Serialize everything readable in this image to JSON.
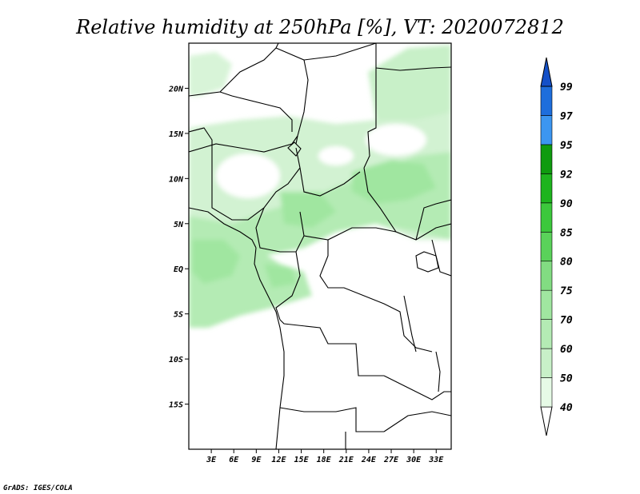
{
  "title": "Relative humidity at 250hPa [%], VT: 2020072812",
  "credit": "GrADS: IGES/COLA",
  "map": {
    "lat_range": [
      -20,
      25
    ],
    "lon_range": [
      0,
      35
    ],
    "lat_ticks": [
      {
        "value": 20,
        "label": "20N"
      },
      {
        "value": 15,
        "label": "15N"
      },
      {
        "value": 10,
        "label": "10N"
      },
      {
        "value": 5,
        "label": "5N"
      },
      {
        "value": 0,
        "label": "EQ"
      },
      {
        "value": -5,
        "label": "5S"
      },
      {
        "value": -10,
        "label": "10S"
      },
      {
        "value": -15,
        "label": "15S"
      }
    ],
    "lon_ticks": [
      {
        "value": 3,
        "label": "3E"
      },
      {
        "value": 6,
        "label": "6E"
      },
      {
        "value": 9,
        "label": "9E"
      },
      {
        "value": 12,
        "label": "12E"
      },
      {
        "value": 15,
        "label": "15E"
      },
      {
        "value": 18,
        "label": "18E"
      },
      {
        "value": 21,
        "label": "21E"
      },
      {
        "value": 24,
        "label": "24E"
      },
      {
        "value": 27,
        "label": "27E"
      },
      {
        "value": 30,
        "label": "30E"
      },
      {
        "value": 33,
        "label": "33E"
      }
    ]
  },
  "colorbar": {
    "levels": [
      {
        "label": "40",
        "color": "#e6fae6"
      },
      {
        "label": "50",
        "color": "#c8f0c8"
      },
      {
        "label": "60",
        "color": "#b4ebb4"
      },
      {
        "label": "70",
        "color": "#a0e6a0"
      },
      {
        "label": "75",
        "color": "#82dc82"
      },
      {
        "label": "80",
        "color": "#5ad25a"
      },
      {
        "label": "85",
        "color": "#3cc83c"
      },
      {
        "label": "90",
        "color": "#1eb41e"
      },
      {
        "label": "92",
        "color": "#0f9b0f"
      },
      {
        "label": "95",
        "color": "#3c96f0"
      },
      {
        "label": "97",
        "color": "#1e6edc"
      },
      {
        "label": "99",
        "color": "#1450c8"
      }
    ]
  }
}
